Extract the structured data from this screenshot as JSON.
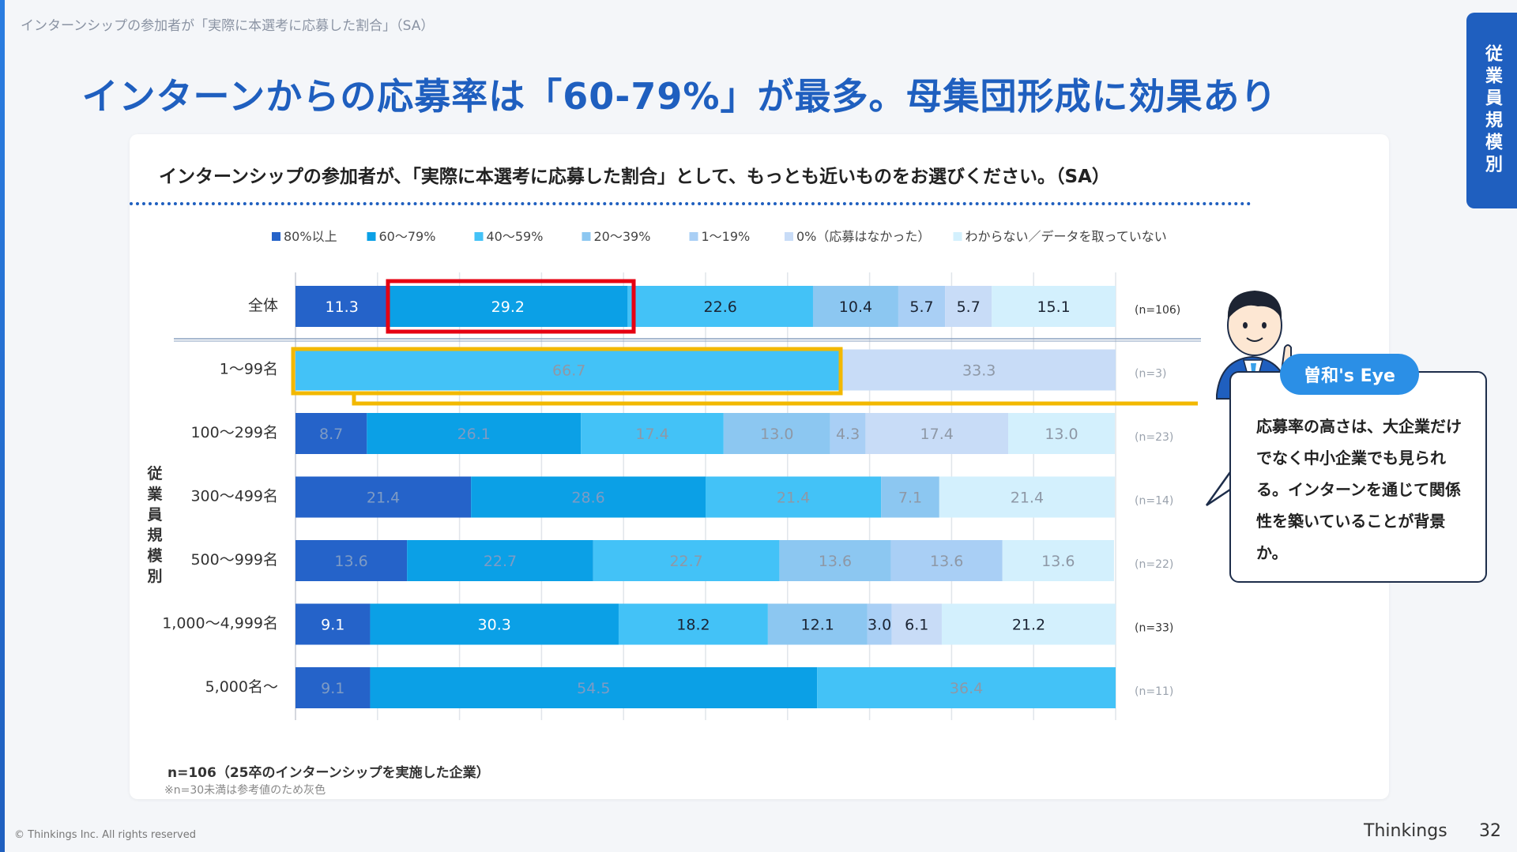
{
  "header": {
    "breadcrumb": "インターンシップの参加者が「実際に本選考に応募した割合」（SA）",
    "title": "インターンからの応募率は「60-79%」が最多。母集団形成に効果あり",
    "side_tab": "従業員規模別"
  },
  "card": {
    "question": "インターンシップの参加者が、「実際に本選考に応募した割合」として、もっとも近いものをお選びください。（SA）"
  },
  "chart_data": {
    "type": "bar",
    "orientation": "horizontal",
    "stacked": true,
    "stacked_percent": true,
    "xlim": [
      0,
      100
    ],
    "legend_position": "top",
    "group_label": "従業員規模別",
    "categories": [
      "全体",
      "1～99名",
      "100～299名",
      "300～499名",
      "500～999名",
      "1,000～4,999名",
      "5,000名～"
    ],
    "n_labels": [
      "(n=106)",
      "(n=3)",
      "(n=23)",
      "(n=14)",
      "(n=22)",
      "(n=33)",
      "(n=11)"
    ],
    "reference_only": [
      false,
      true,
      true,
      true,
      true,
      false,
      true
    ],
    "series": [
      {
        "name": "80%以上",
        "color": "#2563c9",
        "values": [
          11.3,
          0,
          8.7,
          21.4,
          13.6,
          9.1,
          9.1
        ]
      },
      {
        "name": "60～79%",
        "color": "#0ba0e6",
        "values": [
          29.2,
          0,
          26.1,
          28.6,
          22.7,
          30.3,
          54.5
        ]
      },
      {
        "name": "40～59%",
        "color": "#43c2f7",
        "values": [
          22.6,
          66.7,
          17.4,
          21.4,
          22.7,
          18.2,
          36.4
        ]
      },
      {
        "name": "20～39%",
        "color": "#8cc7f1",
        "values": [
          10.4,
          0,
          13.0,
          7.1,
          13.6,
          12.1,
          0
        ]
      },
      {
        "name": "1～19%",
        "color": "#a9cff5",
        "values": [
          5.7,
          0,
          4.3,
          0,
          13.6,
          3.0,
          0
        ]
      },
      {
        "name": "0%（応募はなかった）",
        "color": "#c8dcf7",
        "values": [
          5.7,
          33.3,
          17.4,
          0,
          0,
          6.1,
          0
        ]
      },
      {
        "name": "わからない／データを取っていない",
        "color": "#d3f0fd",
        "values": [
          15.1,
          0,
          13.0,
          21.4,
          13.6,
          21.2,
          0
        ]
      }
    ],
    "bar_labels": [
      [
        "11.3",
        "29.2",
        "22.6",
        "10.4",
        "5.7",
        "5.7",
        "15.1"
      ],
      [
        "",
        "",
        "66.7",
        "",
        "",
        "33.3",
        ""
      ],
      [
        "8.7",
        "26.1",
        "17.4",
        "13.0",
        "4.3",
        "17.4",
        "13.0"
      ],
      [
        "21.4",
        "28.6",
        "21.4",
        "7.1",
        "",
        "",
        "21.4"
      ],
      [
        "13.6",
        "22.7",
        "22.7",
        "13.6",
        "13.6",
        "",
        "13.6"
      ],
      [
        "9.1",
        "30.3",
        "18.2",
        "12.1",
        "3.0",
        "6.1",
        "21.2"
      ],
      [
        "9.1",
        "54.5",
        "36.4",
        "",
        "",
        "",
        ""
      ]
    ],
    "highlights": {
      "red": "全体 / 60～79%",
      "yellow": "1～99名 / 40～59%"
    }
  },
  "speech": {
    "badge": "曽和's Eye",
    "text": "応募率の高さは、大企業だけでなく中小企業でも見られる。インターンを通じて関係性を築いていることが背景か。"
  },
  "footer": {
    "note1": "n=106（25卒のインターンシップを実施した企業）",
    "note2": "※n=30未満は参考値のため灰色",
    "copyright": "© Thinkings Inc. All rights reserved",
    "brand": "Thinkings",
    "page": "32"
  }
}
